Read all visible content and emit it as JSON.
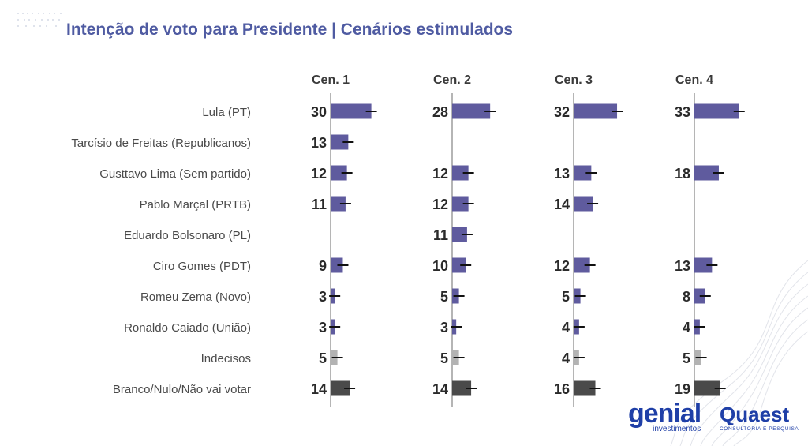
{
  "header": {
    "title": "Intenção de voto para Presidente | Cenários estimulados"
  },
  "chart_data": {
    "type": "bar",
    "orientation": "horizontal",
    "categories": [
      "Lula (PT)",
      "Tarcísio de Freitas (Republicanos)",
      "Gusttavo Lima (Sem partido)",
      "Pablo Marçal (PRTB)",
      "Eduardo Bolsonaro (PL)",
      "Ciro Gomes (PDT)",
      "Romeu Zema (Novo)",
      "Ronaldo Caiado (União)",
      "Indecisos",
      "Branco/Nulo/Não vai votar"
    ],
    "series": [
      {
        "name": "Cen. 1",
        "values": [
          30,
          13,
          12,
          11,
          null,
          9,
          3,
          3,
          5,
          14
        ]
      },
      {
        "name": "Cen. 2",
        "values": [
          28,
          null,
          12,
          12,
          11,
          10,
          5,
          3,
          5,
          14
        ]
      },
      {
        "name": "Cen. 3",
        "values": [
          32,
          null,
          13,
          14,
          null,
          12,
          5,
          4,
          4,
          16
        ]
      },
      {
        "name": "Cen. 4",
        "values": [
          33,
          null,
          18,
          null,
          null,
          13,
          8,
          4,
          5,
          19
        ]
      }
    ],
    "error_bars": true,
    "colors": {
      "candidate": "#5f5b9e",
      "undecided": "#b3b3b3",
      "blank_null": "#4a4a4a",
      "axis": "#b5b5b5",
      "title": "#4f5ba2"
    }
  },
  "footer": {
    "logo_genial": "genial",
    "logo_genial_sub": "investimentos",
    "logo_quaest": "Quaest",
    "logo_quaest_sub": "CONSULTORIA E PESQUISA"
  }
}
